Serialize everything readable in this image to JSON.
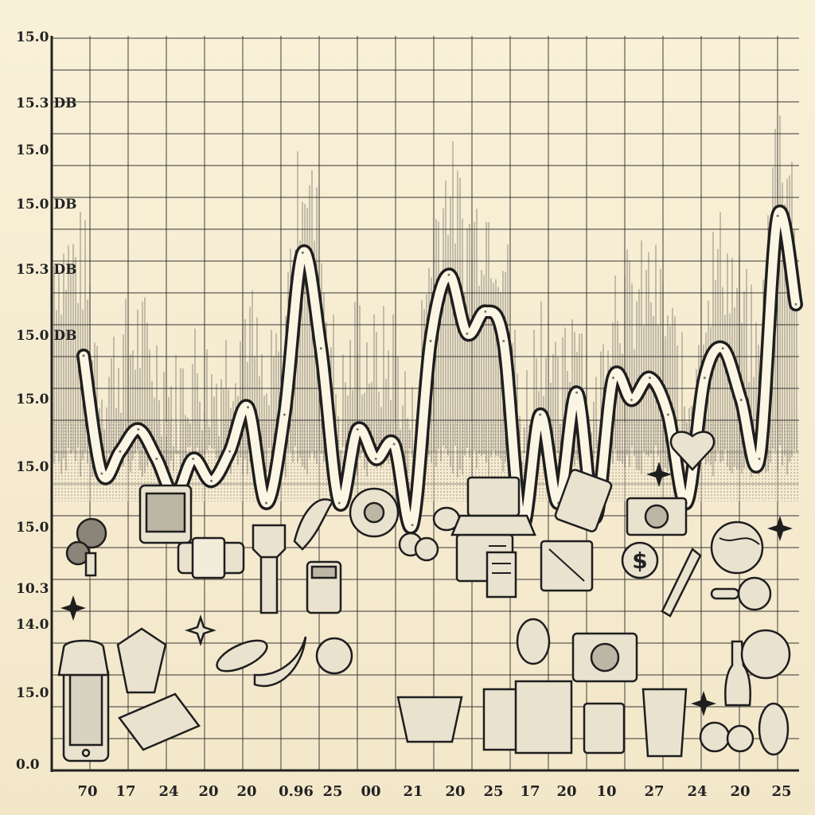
{
  "chart_data": {
    "type": "line",
    "title": "",
    "xlabel": "",
    "ylabel": "",
    "grid": true,
    "y_tick_labels": [
      "15.0",
      "15.3 DB",
      "15.0",
      "15.0 DB",
      "15.3 DB",
      "15.0 DB",
      "15.0",
      "15.0",
      "15.0",
      "10.3",
      "14.0",
      "15.0",
      "0.0"
    ],
    "x_tick_labels": [
      "70",
      "17",
      "24",
      "20",
      "20",
      "0.96",
      "25",
      "00",
      "21",
      "20",
      "25",
      "17",
      "20",
      "10",
      "27",
      "24",
      "20",
      "25"
    ],
    "series": [
      {
        "values": [
          5.6,
          4.0,
          4.3,
          4.6,
          4.2,
          3.7,
          4.2,
          3.9,
          4.3,
          4.9,
          3.6,
          4.8,
          7.0,
          5.7,
          3.6,
          4.6,
          4.2,
          4.4,
          3.3,
          5.8,
          6.7,
          5.9,
          6.2,
          5.8,
          3.3,
          4.8,
          3.6,
          5.1,
          3.4,
          5.3,
          5.0,
          5.3,
          4.8,
          3.6,
          5.3,
          5.7,
          5.0,
          4.2,
          7.5,
          6.3
        ]
      }
    ],
    "icons": [
      "tablet-icon",
      "mic-icon",
      "monitor-icon",
      "badge-icon",
      "chevron-icon",
      "pepper-icon",
      "gear-icon",
      "fruit-icon",
      "egg-icon",
      "card-icon",
      "calculator-icon",
      "laptop-icon",
      "document-icon",
      "wallet-icon",
      "phone-icon",
      "camera-icon",
      "dollar-icon",
      "heart-icon",
      "globe-icon",
      "magnifier-icon",
      "pen-icon",
      "bag-icon",
      "shirt-icon",
      "corn-icon",
      "banana-icon",
      "apple-icon",
      "pineapple-icon",
      "basket-icon",
      "shopping-bag-icon",
      "cup-icon",
      "bottle-icon",
      "ball-icon",
      "candy-icon",
      "book-icon",
      "sparkle-icon",
      "star-icon"
    ]
  }
}
